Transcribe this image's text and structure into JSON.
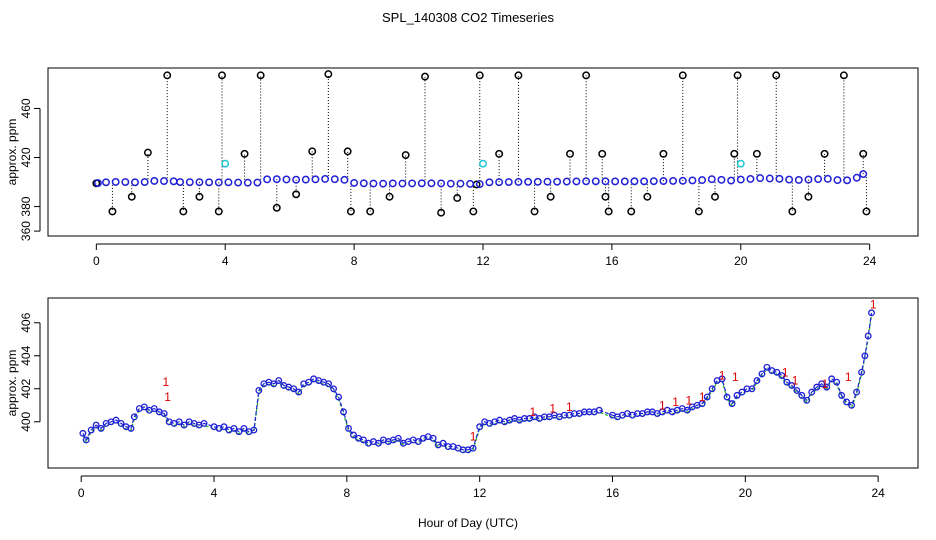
{
  "title": "SPL_140308  CO2 Timeseries",
  "xlabel": "Hour of Day (UTC)",
  "colors": {
    "frame": "#000000",
    "series_blue": "#1f1fd6",
    "series_cyan": "#19c8d2",
    "series_red": "#e00000",
    "series_green": "#22bb22",
    "spike": "#000000"
  },
  "chart_data": [
    {
      "type": "scatter",
      "name": "top-panel",
      "ylabel": "approx. ppm",
      "xlim": [
        -1.5,
        25.5
      ],
      "ylim": [
        356,
        493
      ],
      "x_ticks": [
        0,
        4,
        8,
        12,
        16,
        20,
        24
      ],
      "x_tick_labels": [
        "0",
        "4",
        "8",
        "12",
        "16",
        "20",
        "24"
      ],
      "y_ticks": [
        360,
        380,
        420,
        460
      ],
      "y_tick_labels": [
        "360",
        "380",
        "420",
        "460"
      ],
      "baseline_series": {
        "name": "CO2 (blue)",
        "x": [
          0.05,
          0.3,
          0.6,
          0.9,
          1.2,
          1.5,
          1.8,
          2.1,
          2.4,
          2.6,
          2.9,
          3.2,
          3.5,
          3.8,
          4.1,
          4.4,
          4.7,
          5.0,
          5.3,
          5.6,
          5.9,
          6.2,
          6.5,
          6.8,
          7.1,
          7.4,
          7.7,
          8.0,
          8.3,
          8.6,
          8.9,
          9.2,
          9.5,
          9.8,
          10.1,
          10.4,
          10.7,
          11.0,
          11.3,
          11.6,
          11.9,
          12.2,
          12.5,
          12.8,
          13.1,
          13.4,
          13.7,
          14.0,
          14.3,
          14.6,
          14.9,
          15.2,
          15.5,
          15.8,
          16.1,
          16.4,
          16.7,
          17.0,
          17.3,
          17.6,
          17.9,
          18.2,
          18.5,
          18.8,
          19.1,
          19.4,
          19.7,
          20.0,
          20.3,
          20.6,
          20.9,
          21.2,
          21.5,
          21.8,
          22.1,
          22.4,
          22.7,
          23.0,
          23.3,
          23.6,
          23.8
        ],
        "y": [
          399.2,
          399.8,
          400.1,
          400.0,
          399.8,
          400.0,
          400.9,
          400.8,
          400.6,
          400.0,
          399.9,
          399.9,
          399.8,
          399.7,
          399.8,
          399.6,
          399.5,
          399.6,
          402.2,
          402.3,
          402.1,
          401.9,
          402.0,
          402.2,
          402.5,
          402.3,
          401.8,
          399.3,
          399.0,
          398.8,
          398.7,
          398.9,
          398.8,
          398.9,
          399.0,
          399.0,
          398.9,
          398.7,
          398.7,
          398.5,
          398.3,
          399.8,
          399.9,
          400.0,
          400.1,
          400.2,
          400.2,
          400.3,
          400.3,
          400.4,
          400.5,
          400.6,
          400.6,
          400.6,
          400.5,
          400.5,
          400.6,
          400.6,
          400.7,
          400.8,
          400.9,
          401.0,
          401.3,
          401.6,
          402.3,
          401.8,
          401.2,
          402.0,
          402.5,
          403.2,
          402.9,
          402.6,
          402.0,
          401.7,
          402.0,
          402.4,
          402.6,
          401.6,
          401.4,
          403.5,
          406.5
        ]
      },
      "spikes": {
        "name": "outliers",
        "x": [
          0.0,
          0.5,
          1.1,
          1.6,
          2.2,
          2.7,
          3.2,
          3.8,
          3.9,
          4.6,
          5.1,
          5.6,
          6.2,
          6.7,
          7.2,
          7.8,
          7.9,
          8.5,
          9.1,
          9.6,
          10.2,
          10.7,
          11.2,
          11.7,
          11.8,
          11.9,
          12.5,
          13.1,
          13.6,
          14.1,
          14.7,
          15.2,
          15.7,
          15.8,
          15.9,
          16.6,
          17.1,
          17.6,
          18.2,
          18.7,
          19.2,
          19.8,
          19.9,
          20.5,
          21.1,
          21.6,
          22.1,
          22.6,
          23.2,
          23.8,
          23.9
        ],
        "y": [
          399,
          376,
          388,
          424,
          487,
          376,
          388,
          376,
          487,
          423,
          487,
          379,
          390,
          425,
          488,
          425,
          376,
          376,
          388,
          422,
          486,
          375,
          387,
          376,
          398,
          487,
          423,
          487,
          376,
          388,
          423,
          487,
          423,
          388,
          376,
          376,
          388,
          423,
          487,
          376,
          388,
          423,
          487,
          423,
          487,
          376,
          388,
          423,
          487,
          423,
          376
        ]
      },
      "cyan_points": {
        "x": [
          4.0,
          12.0,
          20.0
        ],
        "y": [
          415,
          415,
          415
        ]
      }
    },
    {
      "type": "line",
      "name": "bottom-panel",
      "ylabel": "approx. ppm",
      "xlim": [
        -1.0,
        25.2
      ],
      "ylim": [
        397.2,
        407.5
      ],
      "x_ticks": [
        0,
        4,
        8,
        12,
        16,
        20,
        24
      ],
      "x_tick_labels": [
        "0",
        "4",
        "8",
        "12",
        "16",
        "20",
        "24"
      ],
      "y_ticks": [
        400,
        402,
        404,
        406
      ],
      "y_tick_labels": [
        "400",
        "402",
        "404",
        "406"
      ],
      "series": [
        {
          "name": "CO2 (blue circles)",
          "x": [
            0.05,
            0.15,
            0.3,
            0.45,
            0.6,
            0.75,
            0.9,
            1.05,
            1.2,
            1.35,
            1.5,
            1.6,
            1.75,
            1.9,
            2.05,
            2.2,
            2.35,
            2.5,
            2.65,
            2.8,
            2.95,
            3.1,
            3.25,
            3.4,
            3.55,
            3.7,
            4.0,
            4.15,
            4.3,
            4.45,
            4.6,
            4.75,
            4.9,
            5.05,
            5.2,
            5.35,
            5.5,
            5.65,
            5.8,
            5.95,
            6.1,
            6.25,
            6.4,
            6.55,
            6.7,
            6.85,
            7.0,
            7.15,
            7.3,
            7.45,
            7.6,
            7.75,
            7.9,
            8.05,
            8.2,
            8.35,
            8.5,
            8.65,
            8.8,
            8.95,
            9.1,
            9.25,
            9.4,
            9.55,
            9.7,
            9.85,
            10.0,
            10.15,
            10.3,
            10.45,
            10.6,
            10.75,
            10.9,
            11.05,
            11.2,
            11.35,
            11.5,
            11.65,
            11.8,
            12.0,
            12.15,
            12.3,
            12.45,
            12.6,
            12.75,
            12.9,
            13.05,
            13.2,
            13.35,
            13.5,
            13.65,
            13.8,
            13.95,
            14.1,
            14.25,
            14.4,
            14.55,
            14.7,
            14.85,
            15.0,
            15.15,
            15.3,
            15.45,
            15.6,
            16.0,
            16.15,
            16.3,
            16.45,
            16.6,
            16.75,
            16.9,
            17.05,
            17.2,
            17.35,
            17.5,
            17.65,
            17.8,
            17.95,
            18.1,
            18.25,
            18.4,
            18.55,
            18.7,
            18.85,
            19.0,
            19.15,
            19.3,
            19.45,
            19.6,
            19.75,
            19.9,
            20.05,
            20.2,
            20.35,
            20.5,
            20.65,
            20.8,
            20.95,
            21.1,
            21.25,
            21.4,
            21.55,
            21.7,
            21.85,
            22.0,
            22.15,
            22.3,
            22.45,
            22.6,
            22.75,
            22.9,
            23.05,
            23.2,
            23.35,
            23.5,
            23.6,
            23.7,
            23.8
          ],
          "y": [
            399.3,
            398.9,
            399.5,
            399.8,
            399.6,
            399.9,
            400.0,
            400.1,
            399.9,
            399.7,
            399.6,
            400.3,
            400.8,
            400.9,
            400.7,
            400.8,
            400.6,
            400.5,
            400.0,
            399.9,
            400.0,
            399.8,
            400.0,
            399.9,
            399.8,
            399.9,
            399.7,
            399.6,
            399.7,
            399.5,
            399.6,
            399.4,
            399.6,
            399.4,
            399.5,
            401.9,
            402.3,
            402.4,
            402.3,
            402.5,
            402.2,
            402.1,
            402.0,
            401.8,
            402.3,
            402.4,
            402.6,
            402.5,
            402.4,
            402.3,
            402.0,
            401.5,
            400.6,
            399.6,
            399.2,
            399.0,
            398.9,
            398.7,
            398.8,
            398.7,
            398.9,
            398.8,
            398.9,
            399.0,
            398.7,
            398.8,
            398.9,
            398.8,
            399.0,
            399.1,
            399.0,
            398.6,
            398.7,
            398.5,
            398.5,
            398.4,
            398.3,
            398.3,
            398.4,
            399.7,
            400.0,
            399.9,
            400.0,
            400.1,
            400.0,
            400.1,
            400.2,
            400.1,
            400.2,
            400.2,
            400.3,
            400.2,
            400.3,
            400.3,
            400.4,
            400.3,
            400.4,
            400.4,
            400.5,
            400.5,
            400.6,
            400.6,
            400.6,
            400.7,
            400.4,
            400.3,
            400.4,
            400.5,
            400.4,
            400.5,
            400.5,
            400.6,
            400.6,
            400.5,
            400.6,
            400.7,
            400.6,
            400.7,
            400.8,
            400.7,
            400.9,
            401.0,
            401.1,
            401.5,
            402.0,
            402.5,
            402.6,
            401.5,
            401.1,
            401.6,
            401.8,
            402.0,
            402.0,
            402.5,
            402.9,
            403.3,
            403.1,
            403.0,
            402.8,
            402.4,
            402.2,
            401.9,
            401.6,
            401.3,
            401.8,
            402.1,
            402.3,
            402.1,
            402.6,
            402.4,
            401.6,
            401.2,
            401.0,
            401.8,
            403.0,
            404.0,
            405.2,
            406.6
          ]
        },
        {
          "name": "label 1 (red)",
          "x": [
            2.55,
            2.6,
            11.8,
            13.6,
            14.2,
            14.7,
            17.5,
            17.9,
            18.3,
            18.7,
            19.3,
            19.7,
            21.2,
            21.5,
            22.4,
            23.1,
            23.85
          ],
          "y": [
            402.4,
            401.5,
            399.1,
            400.6,
            400.8,
            400.9,
            401.0,
            401.2,
            401.3,
            401.5,
            402.8,
            402.7,
            403.0,
            402.5,
            402.3,
            402.7,
            407.1
          ]
        }
      ]
    }
  ]
}
